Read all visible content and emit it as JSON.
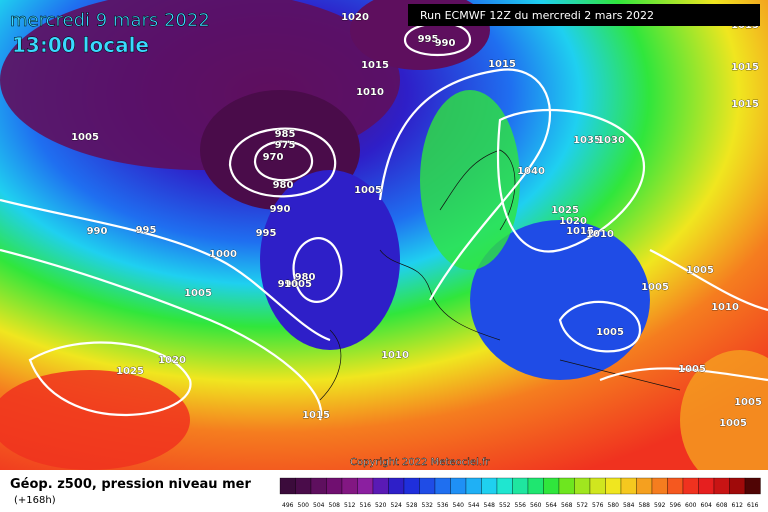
{
  "header": {
    "date": "mercredi 9 mars 2022",
    "time": "13:00 locale",
    "run": "Run ECMWF 12Z du mercredi 2 mars 2022"
  },
  "footer": {
    "title": "Géop. z500, pression niveau mer",
    "lead": "(+168h)",
    "copyright": "Copyright 2022 Meteociel.fr"
  },
  "isobar_labels": [
    1020,
    995,
    990,
    1015,
    1015,
    1010,
    1015,
    1015,
    1015,
    1005,
    985,
    975,
    970,
    980,
    990,
    1035,
    1030,
    1040,
    1005,
    1025,
    1020,
    1015,
    1010,
    990,
    995,
    995,
    1000,
    980,
    990,
    1005,
    1005,
    1005,
    1005,
    1010,
    1010,
    1005,
    1020,
    1025,
    1005,
    1015,
    1005,
    1005
  ],
  "colorbar": {
    "ticks": [
      496,
      500,
      504,
      508,
      512,
      516,
      520,
      524,
      528,
      532,
      536,
      540,
      544,
      548,
      552,
      556,
      560,
      564,
      568,
      572,
      576,
      580,
      584,
      588,
      592,
      596,
      600,
      604,
      608,
      612,
      616
    ],
    "colors": [
      "#3b0b3b",
      "#4a0c4a",
      "#5e0f5e",
      "#700f70",
      "#821782",
      "#8b1fa0",
      "#5a1ab5",
      "#2e1fc8",
      "#1f2fdc",
      "#1f4ce6",
      "#1f6ff0",
      "#1f90f5",
      "#1fb0f5",
      "#1fd0f0",
      "#1fe6d0",
      "#1fe6a0",
      "#1fe670",
      "#30e63c",
      "#6ee61f",
      "#a0e61f",
      "#d0e61f",
      "#f0e61f",
      "#f5c81f",
      "#f5a01f",
      "#f57d1f",
      "#f5581f",
      "#f0321f",
      "#e61f1f",
      "#c81414",
      "#a00a0a",
      "#500505"
    ]
  }
}
